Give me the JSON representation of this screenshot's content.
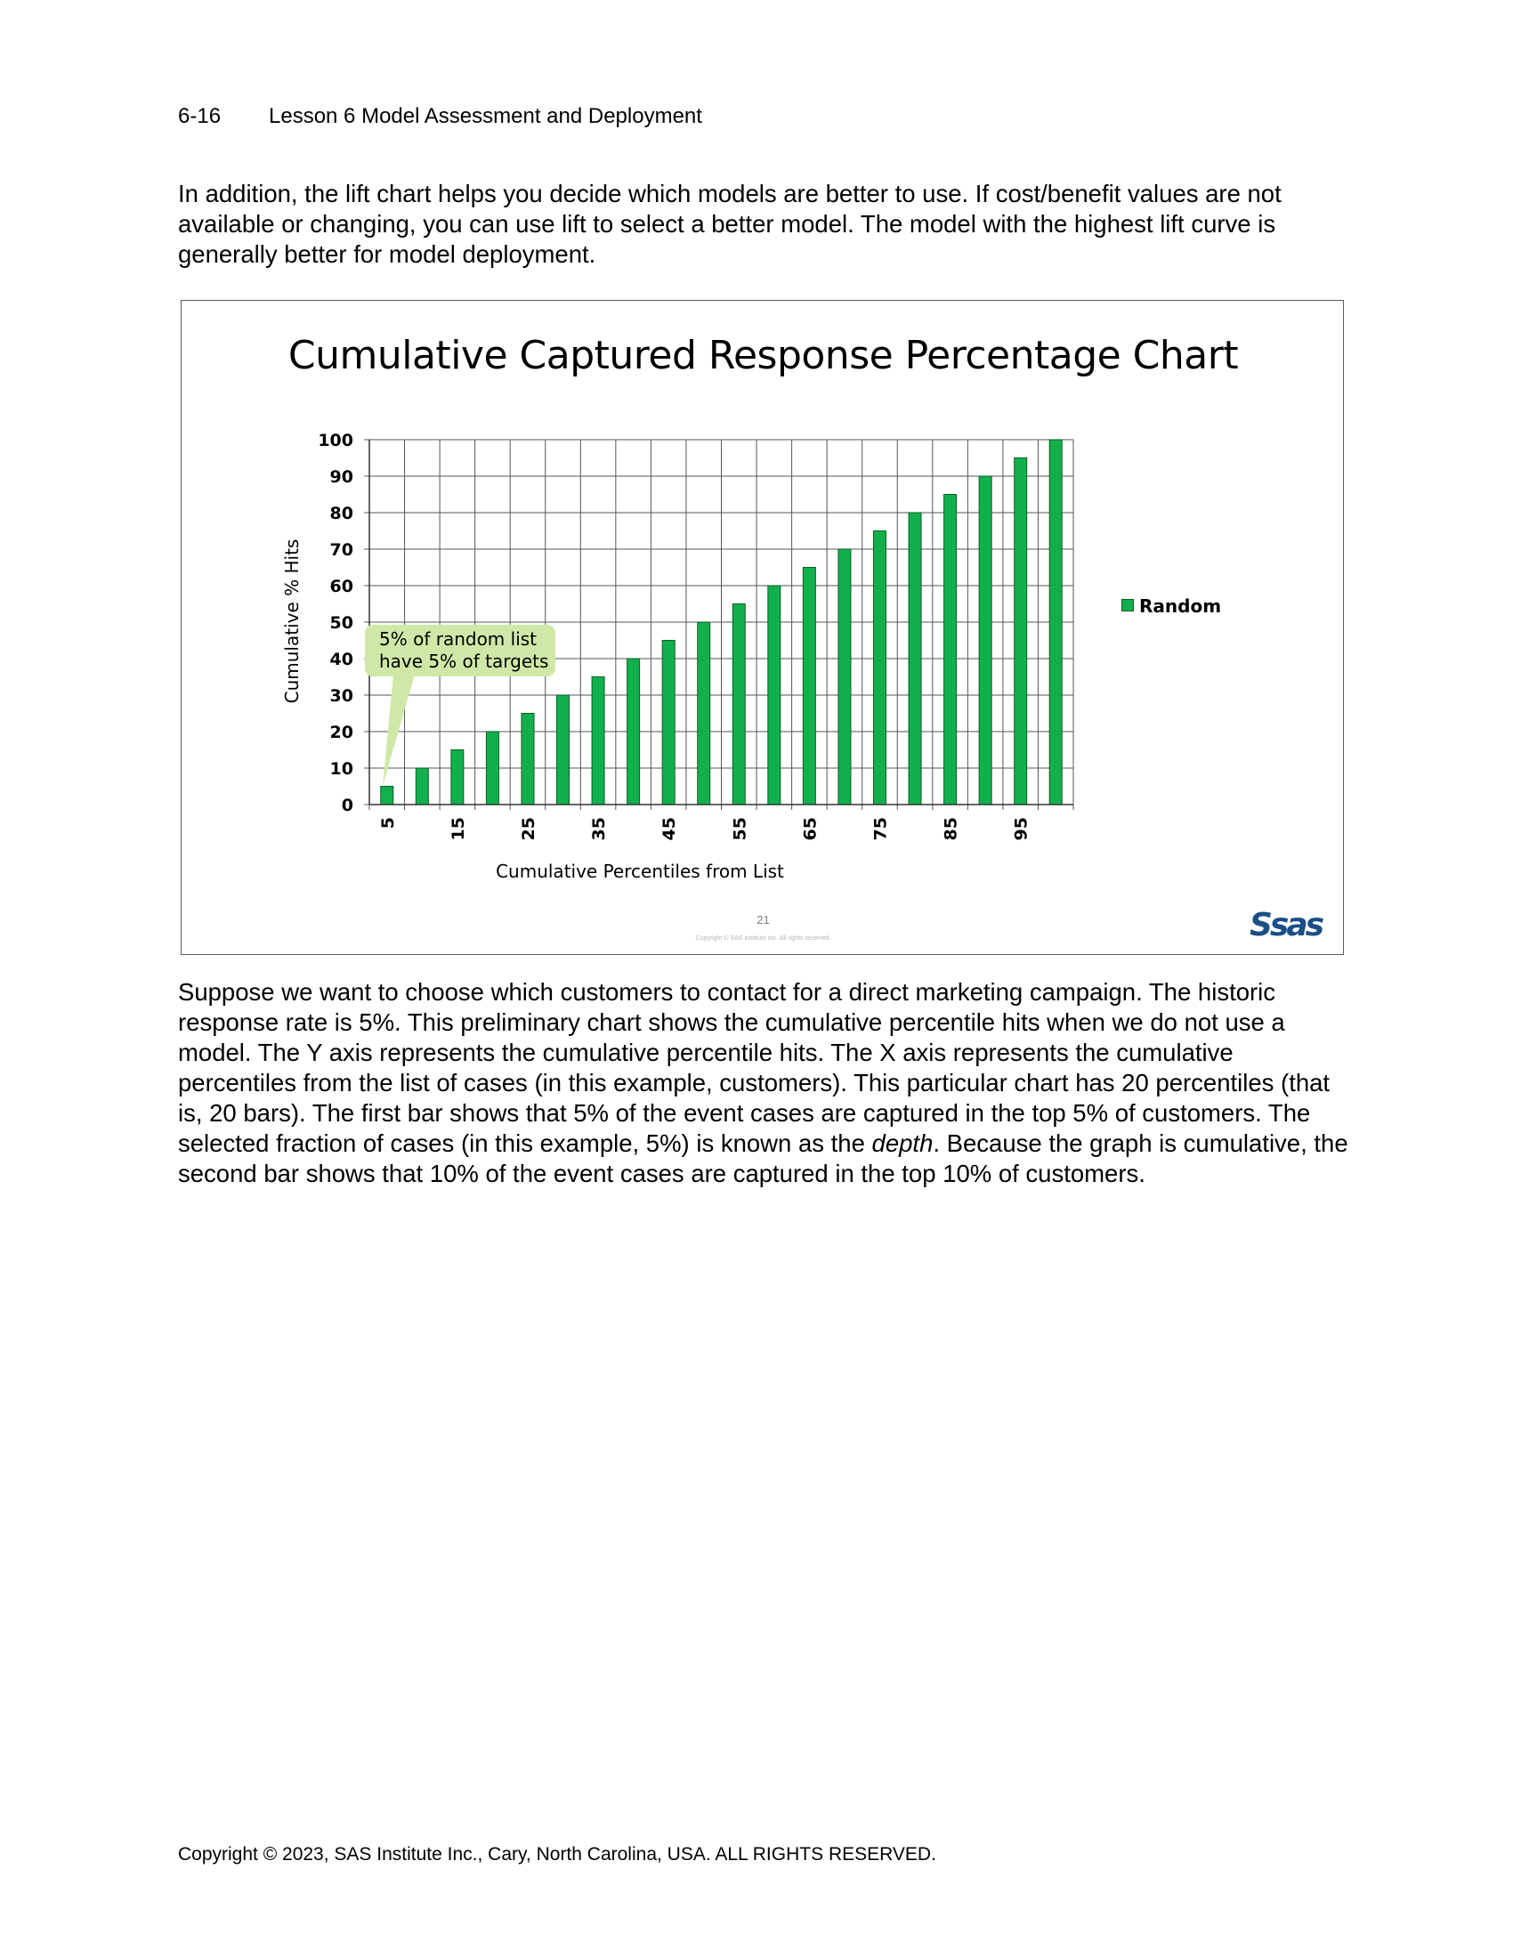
{
  "header": {
    "page_number": "6-16",
    "section": "Lesson 6  Model Assessment and Deployment"
  },
  "intro_paragraph": "In addition, the lift chart helps you decide which models are better to use. If cost/benefit values are not available or changing, you can use lift to select a better model. The model with the highest lift curve is generally better for model deployment.",
  "slide": {
    "callout": [
      "5% of random list",
      "have 5% of targets"
    ],
    "slide_number": "21",
    "slide_copyright": "Copyright © SAS Institute Inc. All rights reserved.",
    "logo_text": "Ssas"
  },
  "chart_data": {
    "type": "bar",
    "title": "Cumulative Captured Response Percentage Chart",
    "xlabel": "Cumulative Percentiles from List",
    "ylabel": "Cumulative % Hits",
    "categories": [
      5,
      10,
      15,
      20,
      25,
      30,
      35,
      40,
      45,
      50,
      55,
      60,
      65,
      70,
      75,
      80,
      85,
      90,
      95,
      100
    ],
    "x_tick_labels": [
      "5",
      "15",
      "25",
      "35",
      "45",
      "55",
      "65",
      "75",
      "85",
      "95"
    ],
    "y_ticks": [
      "0",
      "10",
      "20",
      "30",
      "40",
      "50",
      "60",
      "70",
      "80",
      "90",
      "100"
    ],
    "series": [
      {
        "name": "Random",
        "values": [
          5,
          10,
          15,
          20,
          25,
          30,
          35,
          40,
          45,
          50,
          55,
          60,
          65,
          70,
          75,
          80,
          85,
          90,
          95,
          100
        ]
      }
    ],
    "ylim": [
      0,
      100
    ],
    "grid": true,
    "legend": "right",
    "bar_color": "#12b04c"
  },
  "explanation": {
    "before_em": "Suppose we want to choose which customers to contact for a direct marketing campaign. The historic response rate is 5%. This preliminary chart shows the cumulative percentile hits when we do not use a model. The Y axis represents the cumulative percentile hits. The X axis represents the cumulative percentiles from the list of cases (in this example, customers). This particular chart has 20 percentiles (that is, 20 bars). The first bar shows that 5% of the event cases are captured in the top 5% of customers. The selected fraction of cases (in this example, 5%) is known as the ",
    "em": "depth",
    "after_em": ". Because the graph is cumulative, the second bar shows that 10% of the event cases are captured in the top 10% of customers."
  },
  "footer": "Copyright © 2023, SAS Institute Inc., Cary, North Carolina, USA. ALL RIGHTS RESERVED."
}
